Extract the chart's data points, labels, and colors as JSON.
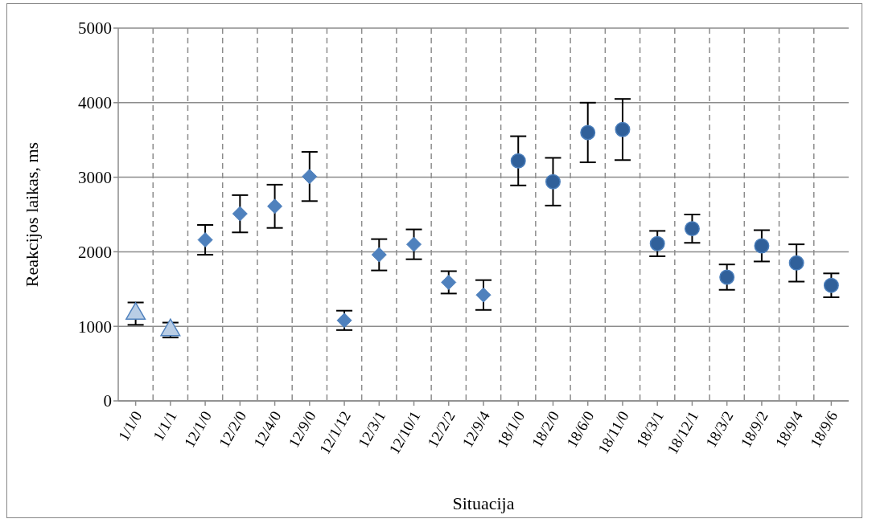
{
  "chart_data": {
    "type": "scatter",
    "xlabel": "Situacija",
    "ylabel": "Reakcijos laikas, ms",
    "categories": [
      "1/1/0",
      "1/1/1",
      "12/1/0",
      "12/2/0",
      "12/4/0",
      "12/9/0",
      "12/1/12",
      "12/3/1",
      "12/10/1",
      "12/2/2",
      "12/9/4",
      "18/1/0",
      "18/2/0",
      "18/6/0",
      "18/11/0",
      "18/3/1",
      "18/12/1",
      "18/3/2",
      "18/9/2",
      "18/9/4",
      "18/9/6"
    ],
    "series": [
      {
        "color": "#b9cde5",
        "marker": "triangle",
        "values": [
          1170,
          950,
          null,
          null,
          null,
          null,
          null,
          null,
          null,
          null,
          null,
          null,
          null,
          null,
          null,
          null,
          null,
          null,
          null,
          null,
          null
        ],
        "errors": [
          150,
          100,
          null,
          null,
          null,
          null,
          null,
          null,
          null,
          null,
          null,
          null,
          null,
          null,
          null,
          null,
          null,
          null,
          null,
          null,
          null
        ]
      },
      {
        "color": "#4f81bd",
        "marker": "diamond",
        "values": [
          null,
          null,
          2160,
          2510,
          2610,
          3010,
          1080,
          1960,
          2100,
          1590,
          1420,
          null,
          null,
          null,
          null,
          null,
          null,
          null,
          null,
          null,
          null
        ],
        "errors": [
          null,
          null,
          200,
          250,
          290,
          330,
          130,
          210,
          200,
          150,
          200,
          null,
          null,
          null,
          null,
          null,
          null,
          null,
          null,
          null,
          null
        ]
      },
      {
        "color": "#30609a",
        "marker": "circle",
        "values": [
          null,
          null,
          null,
          null,
          null,
          null,
          null,
          null,
          null,
          null,
          null,
          3220,
          2940,
          3600,
          3640,
          2110,
          2310,
          1660,
          2080,
          1850,
          1550
        ],
        "errors": [
          null,
          null,
          null,
          null,
          null,
          null,
          null,
          null,
          null,
          null,
          null,
          330,
          320,
          400,
          410,
          170,
          190,
          170,
          210,
          250,
          160
        ]
      }
    ],
    "ylim": [
      0,
      5000
    ],
    "yticks": [
      0,
      1000,
      2000,
      3000,
      4000,
      5000
    ],
    "grid": true
  }
}
